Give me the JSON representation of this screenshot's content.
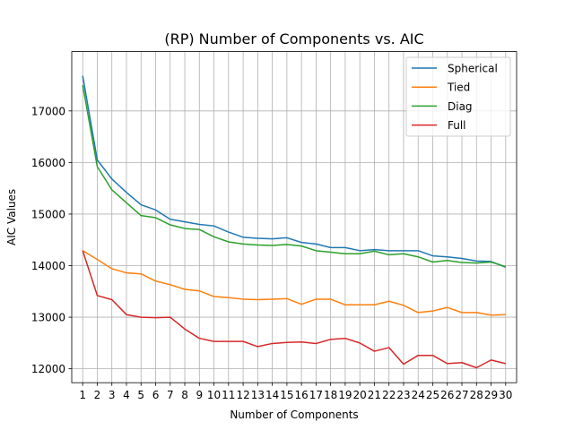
{
  "chart_data": {
    "type": "line",
    "title": "(RP) Number of Components vs. AIC",
    "xlabel": "Number of Components",
    "ylabel": "AIC Values",
    "x": [
      1,
      2,
      3,
      4,
      5,
      6,
      7,
      8,
      9,
      10,
      11,
      12,
      13,
      14,
      15,
      16,
      17,
      18,
      19,
      20,
      21,
      22,
      23,
      24,
      25,
      26,
      27,
      28,
      29,
      30
    ],
    "xlim": [
      0.25,
      30.75
    ],
    "ylim": [
      11730,
      18150
    ],
    "yticks": [
      12000,
      13000,
      14000,
      15000,
      16000,
      17000
    ],
    "grid": true,
    "legend_position": "top-right",
    "series": [
      {
        "name": "Spherical",
        "color": "#1f77b4",
        "values": [
          17680,
          16050,
          15680,
          15420,
          15180,
          15080,
          14900,
          14850,
          14800,
          14770,
          14650,
          14550,
          14530,
          14520,
          14540,
          14450,
          14420,
          14350,
          14350,
          14290,
          14310,
          14290,
          14290,
          14290,
          14190,
          14170,
          14140,
          14090,
          14080,
          13970
        ]
      },
      {
        "name": "Tied",
        "color": "#ff7f0e",
        "values": [
          14290,
          14120,
          13940,
          13860,
          13840,
          13700,
          13630,
          13540,
          13510,
          13400,
          13380,
          13350,
          13340,
          13350,
          13360,
          13250,
          13350,
          13350,
          13240,
          13240,
          13240,
          13310,
          13230,
          13090,
          13120,
          13190,
          13090,
          13090,
          13040,
          13050
        ]
      },
      {
        "name": "Diag",
        "color": "#2ca02c",
        "values": [
          17500,
          15920,
          15470,
          15220,
          14970,
          14930,
          14790,
          14720,
          14700,
          14560,
          14460,
          14420,
          14400,
          14390,
          14410,
          14380,
          14290,
          14260,
          14230,
          14230,
          14280,
          14210,
          14230,
          14170,
          14070,
          14100,
          14060,
          14050,
          14070,
          13980
        ]
      },
      {
        "name": "Full",
        "color": "#d62728",
        "values": [
          14290,
          13420,
          13340,
          13050,
          13000,
          12990,
          13000,
          12770,
          12590,
          12530,
          12530,
          12530,
          12430,
          12490,
          12510,
          12520,
          12490,
          12570,
          12590,
          12500,
          12340,
          12410,
          12090,
          12260,
          12260,
          12100,
          12120,
          12020,
          12170,
          12100
        ]
      }
    ]
  }
}
